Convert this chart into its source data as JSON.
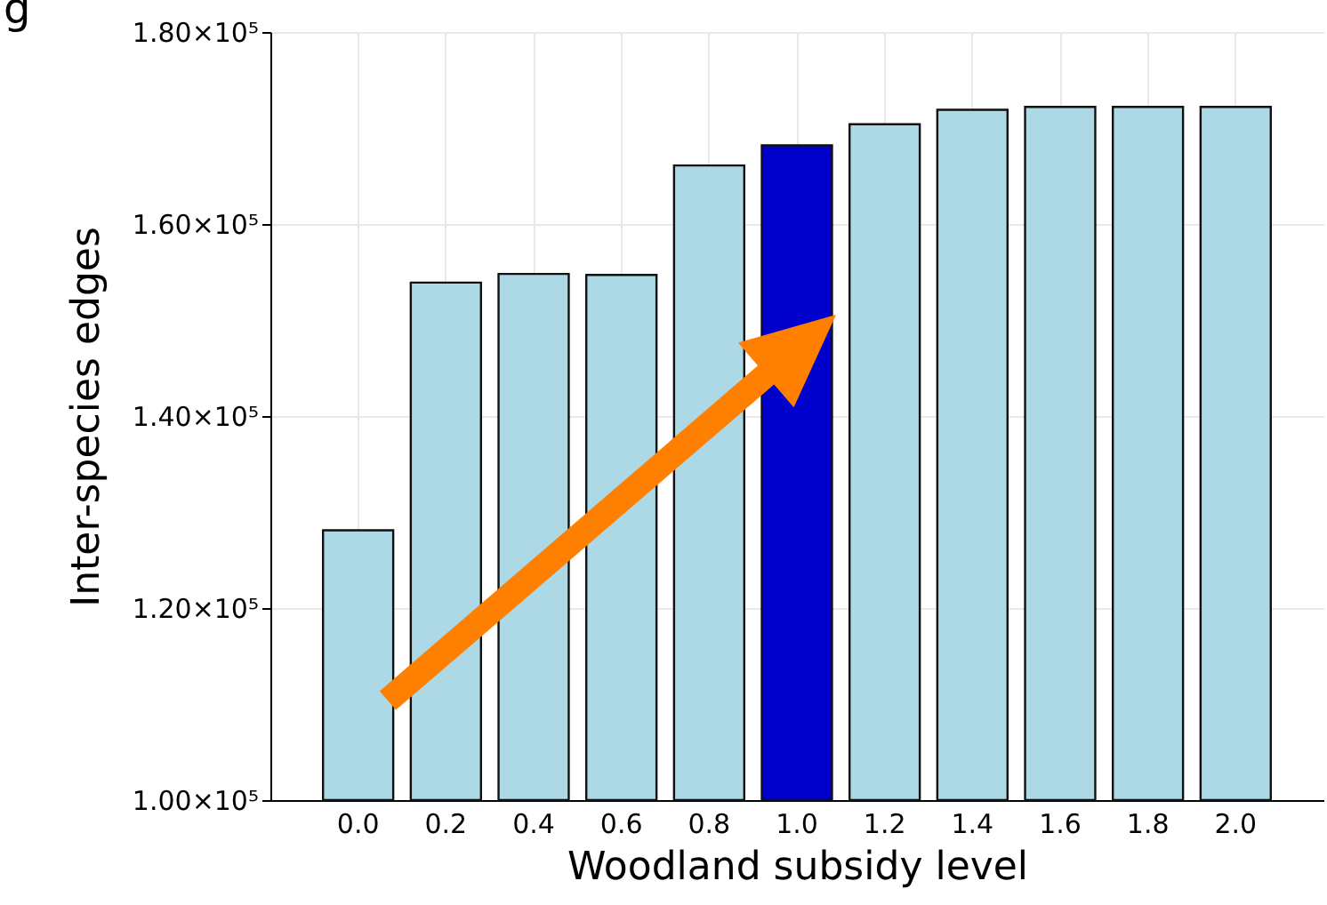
{
  "chart_data": {
    "type": "bar",
    "title": "g",
    "xlabel": "Woodland subsidy level",
    "ylabel": "Inter-species edges",
    "categories": [
      "0.0",
      "0.2",
      "0.4",
      "0.6",
      "0.8",
      "1.0",
      "1.2",
      "1.4",
      "1.6",
      "1.8",
      "2.0"
    ],
    "values": [
      128100,
      153900,
      154800,
      154700,
      166100,
      168200,
      170400,
      171900,
      172200,
      172200,
      172200
    ],
    "colors": [
      "#add8e6",
      "#add8e6",
      "#add8e6",
      "#add8e6",
      "#add8e6",
      "#0000cd",
      "#add8e6",
      "#add8e6",
      "#add8e6",
      "#add8e6",
      "#add8e6"
    ],
    "ylim": [
      100000,
      180000
    ],
    "yticks": [
      {
        "value": 100000,
        "label": "1.00×10⁵"
      },
      {
        "value": 120000,
        "label": "1.20×10⁵"
      },
      {
        "value": 140000,
        "label": "1.40×10⁵"
      },
      {
        "value": 160000,
        "label": "1.60×10⁵"
      },
      {
        "value": 180000,
        "label": "1.80×10⁵"
      }
    ],
    "grid": true
  }
}
